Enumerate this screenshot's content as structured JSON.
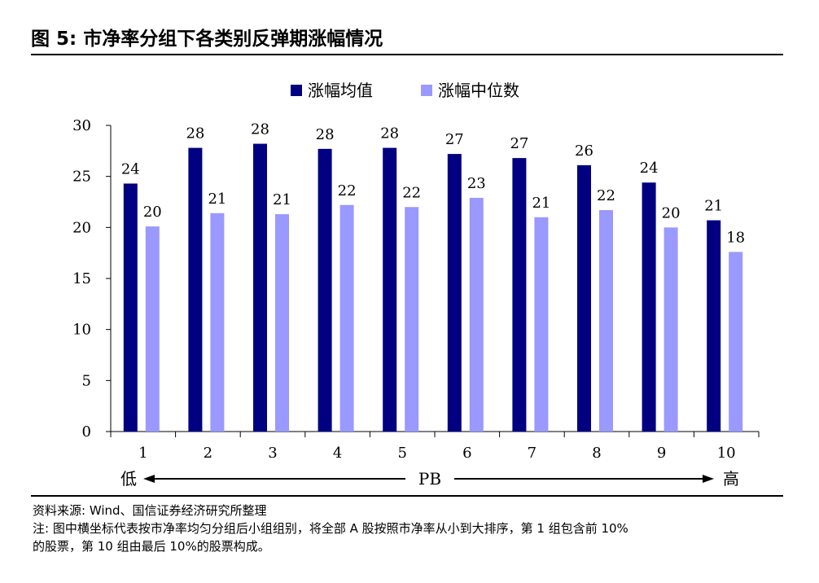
{
  "figure": {
    "title": "图 5:  市净率分组下各类别反弹期涨幅情况"
  },
  "chart_data": {
    "type": "bar",
    "categories": [
      "1",
      "2",
      "3",
      "4",
      "5",
      "6",
      "7",
      "8",
      "9",
      "10"
    ],
    "series": [
      {
        "name": "涨幅均值",
        "values": [
          24.3,
          27.8,
          28.2,
          27.7,
          27.8,
          27.2,
          26.8,
          26.1,
          24.4,
          20.7
        ],
        "labels": [
          "24",
          "28",
          "28",
          "28",
          "28",
          "27",
          "27",
          "26",
          "24",
          "21"
        ],
        "color": "#000080"
      },
      {
        "name": "涨幅中位数",
        "values": [
          20.1,
          21.4,
          21.3,
          22.2,
          22.0,
          22.9,
          21.0,
          21.7,
          20.0,
          17.6
        ],
        "labels": [
          "20",
          "21",
          "21",
          "22",
          "22",
          "23",
          "21",
          "22",
          "20",
          "18"
        ],
        "color": "#9999ff"
      }
    ],
    "ylim": [
      0,
      30
    ],
    "yticks": [
      "0",
      "5",
      "10",
      "15",
      "20",
      "25",
      "30"
    ],
    "ytick_values": [
      0,
      5,
      10,
      15,
      20,
      25,
      30
    ],
    "legend_position": "top-center",
    "grid": false,
    "x_direction": {
      "low_label": "低",
      "axis_label": "PB",
      "high_label": "高"
    }
  },
  "footnotes": {
    "source": "资料来源: Wind、国信证券经济研究所整理",
    "note_line1": "注:  图中横坐标代表按市净率均匀分组后小组组别，将全部 A 股按照市净率从小到大排序，第 1 组包含前 10%",
    "note_line2": "的股票，第 10 组由最后 10%的股票构成。"
  }
}
